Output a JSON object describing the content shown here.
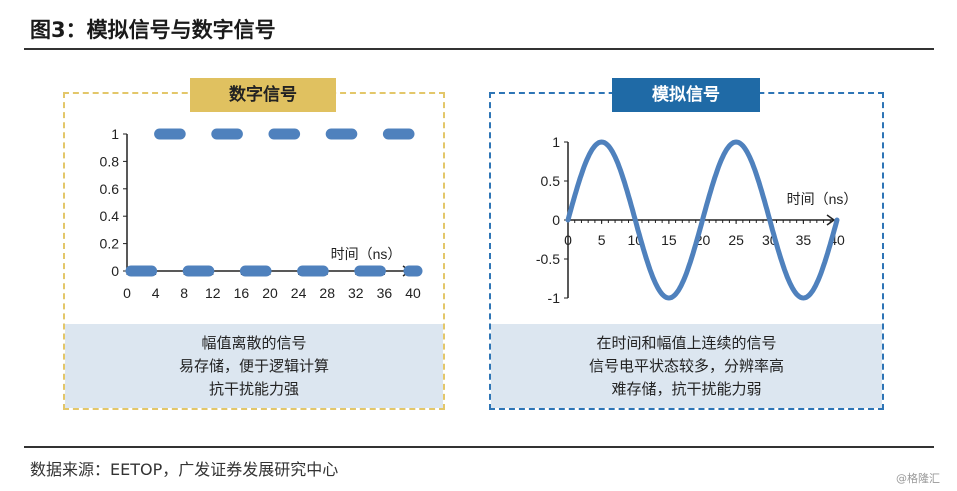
{
  "title": "图3：模拟信号与数字信号",
  "source": "数据来源：EETOP，广发证券发展研究中心",
  "watermark": "@格隆汇",
  "colors": {
    "series": "#4f81bd",
    "digital_label_bg": "#e0c160",
    "analog_label_bg": "#1f6aa6",
    "desc_bg": "#dce6f0"
  },
  "digital": {
    "label": "数字信号",
    "desc": [
      "幅值离散的信号",
      "易存储，便于逻辑计算",
      "抗干扰能力强"
    ]
  },
  "analog": {
    "label": "模拟信号",
    "desc": [
      "在时间和幅值上连续的信号",
      "信号电平状态较多，分辨率高",
      "难存储，抗干扰能力弱"
    ]
  },
  "chart_data": [
    {
      "type": "line",
      "name": "数字信号",
      "xlabel": "时间（ns）",
      "ylabel": "",
      "xlim": [
        0,
        40
      ],
      "ylim": [
        0,
        1
      ],
      "xticks": [
        "0",
        "4",
        "8",
        "12",
        "16",
        "20",
        "24",
        "28",
        "32",
        "36",
        "40"
      ],
      "yticks": [
        "0",
        "0.2",
        "0.4",
        "0.6",
        "0.8",
        "1"
      ],
      "grid": false,
      "segments": [
        {
          "x": [
            0,
            4
          ],
          "y": 0
        },
        {
          "x": [
            4,
            8
          ],
          "y": 1
        },
        {
          "x": [
            8,
            12
          ],
          "y": 0
        },
        {
          "x": [
            12,
            16
          ],
          "y": 1
        },
        {
          "x": [
            16,
            20
          ],
          "y": 0
        },
        {
          "x": [
            20,
            24
          ],
          "y": 1
        },
        {
          "x": [
            24,
            28
          ],
          "y": 0
        },
        {
          "x": [
            28,
            32
          ],
          "y": 1
        },
        {
          "x": [
            32,
            36
          ],
          "y": 0
        },
        {
          "x": [
            36,
            40
          ],
          "y": 1
        },
        {
          "x": [
            40,
            40
          ],
          "y": 0
        }
      ]
    },
    {
      "type": "line",
      "name": "模拟信号",
      "xlabel": "时间（ns）",
      "ylabel": "",
      "xlim": [
        0,
        40
      ],
      "ylim": [
        -1,
        1
      ],
      "xticks": [
        "0",
        "5",
        "10",
        "15",
        "20",
        "25",
        "30",
        "35",
        "40"
      ],
      "yticks": [
        "-1",
        "-0.5",
        "0",
        "0.5",
        "1"
      ],
      "grid": false,
      "function": "sin(2π·x/20)",
      "period": 20,
      "amplitude": 1
    }
  ]
}
